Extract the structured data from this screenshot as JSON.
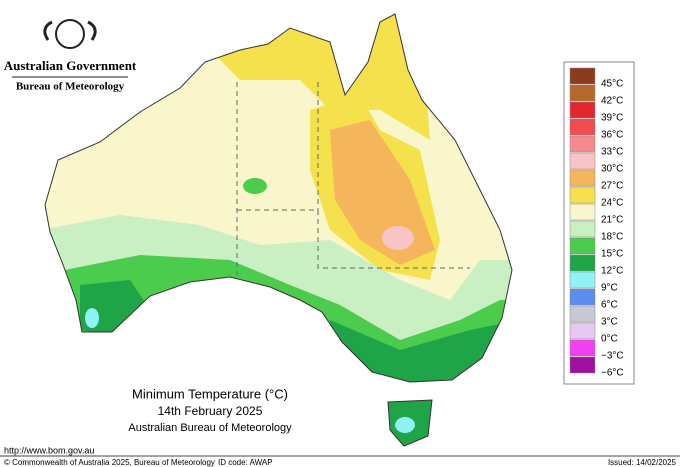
{
  "header": {
    "government": "Australian Government",
    "bureau": "Bureau of Meteorology"
  },
  "map": {
    "title": "Minimum Temperature (°C)",
    "date": "14th February 2025",
    "source": "Australian Bureau of Meteorology"
  },
  "legend": [
    {
      "label": "45°C",
      "color": "#8c3b1e"
    },
    {
      "label": "42°C",
      "color": "#b56a2c"
    },
    {
      "label": "39°C",
      "color": "#e0282e"
    },
    {
      "label": "36°C",
      "color": "#f04c52"
    },
    {
      "label": "33°C",
      "color": "#f48a8c"
    },
    {
      "label": "30°C",
      "color": "#f8c4c6"
    },
    {
      "label": "27°C",
      "color": "#f5b55c"
    },
    {
      "label": "24°C",
      "color": "#f5e14c"
    },
    {
      "label": "21°C",
      "color": "#faf6cc"
    },
    {
      "label": "18°C",
      "color": "#c9efc2"
    },
    {
      "label": "15°C",
      "color": "#4ccc4c"
    },
    {
      "label": "12°C",
      "color": "#1fa547"
    },
    {
      "label": "9°C",
      "color": "#8ff3f6"
    },
    {
      "label": "6°C",
      "color": "#5c8ef0"
    },
    {
      "label": "3°C",
      "color": "#c8c8d8"
    },
    {
      "label": "0°C",
      "color": "#e6c8f0"
    },
    {
      "label": "−3°C",
      "color": "#f040f0"
    },
    {
      "label": "−6°C",
      "color": "#a010a0"
    }
  ],
  "footer": {
    "url": "http://www.bom.gov.au",
    "copyright": "© Commonwealth of Australia 2025, Bureau of Meteorology",
    "id_code": "ID code: AWAP",
    "issued": "Issued: 14/02/2025"
  }
}
